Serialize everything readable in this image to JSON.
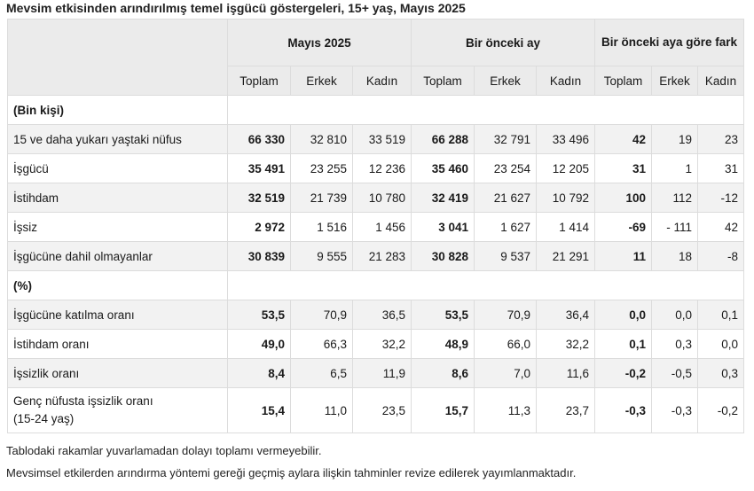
{
  "title": "Mevsim etkisinden arındırılmış temel işgücü göstergeleri, 15+ yaş, Mayıs 2025",
  "headers": {
    "group1": "Mayıs 2025",
    "group2": "Bir önceki ay",
    "group3": "Bir önceki aya göre fark",
    "sub": [
      "Toplam",
      "Erkek",
      "Kadın",
      "Toplam",
      "Erkek",
      "Kadın",
      "Toplam",
      "Erkek",
      "Kadın"
    ]
  },
  "sections": {
    "thousands": "(Bin kişi)",
    "percent": "(%)"
  },
  "rows": [
    {
      "label": "15 ve daha yukarı yaştaki nüfus",
      "values": [
        "66 330",
        "32 810",
        "33 519",
        "66 288",
        "32 791",
        "33 496",
        "42",
        "19",
        "23"
      ]
    },
    {
      "label": "İşgücü",
      "values": [
        "35 491",
        "23 255",
        "12 236",
        "35 460",
        "23 254",
        "12 205",
        "31",
        "1",
        "31"
      ]
    },
    {
      "label": "İstihdam",
      "values": [
        "32 519",
        "21 739",
        "10 780",
        "32 419",
        "21 627",
        "10 792",
        "100",
        "112",
        "-12"
      ]
    },
    {
      "label": "İşsiz",
      "values": [
        "2 972",
        "1 516",
        "1 456",
        "3 041",
        "1 627",
        "1 414",
        "-69",
        "- 111",
        "42"
      ]
    },
    {
      "label": "İşgücüne dahil olmayanlar",
      "values": [
        "30 839",
        "9 555",
        "21 283",
        "30 828",
        "9 537",
        "21 291",
        "11",
        "18",
        "-8"
      ]
    },
    {
      "label": "İşgücüne katılma oranı",
      "values": [
        "53,5",
        "70,9",
        "36,5",
        "53,5",
        "70,9",
        "36,4",
        "0,0",
        "0,0",
        "0,1"
      ]
    },
    {
      "label": "İstihdam oranı",
      "values": [
        "49,0",
        "66,3",
        "32,2",
        "48,9",
        "66,0",
        "32,2",
        "0,1",
        "0,3",
        "0,0"
      ]
    },
    {
      "label": "İşsizlik oranı",
      "values": [
        "8,4",
        "6,5",
        "11,9",
        "8,6",
        "7,0",
        "11,6",
        "-0,2",
        "-0,5",
        "0,3"
      ]
    },
    {
      "label": "Genç nüfusta işsizlik oranı\n(15-24 yaş)",
      "values": [
        "15,4",
        "11,0",
        "23,5",
        "15,7",
        "11,3",
        "23,7",
        "-0,3",
        "-0,3",
        "-0,2"
      ]
    }
  ],
  "notes": [
    "Tablodaki rakamlar yuvarlamadan dolayı toplamı vermeyebilir.",
    "Mevsimsel etkilerden arındırma yöntemi gereği geçmiş aylara ilişkin tahminler revize edilerek yayımlanmaktadır."
  ]
}
